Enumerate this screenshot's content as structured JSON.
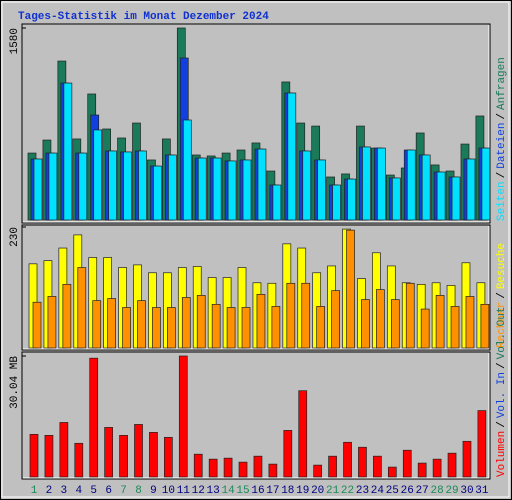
{
  "chart_data": [
    {
      "type": "bar",
      "title": "Tages-Statistik im Monat Dezember 2024",
      "ylim": [
        0,
        1580
      ],
      "yticks": [
        1580
      ],
      "legend_separator": "/",
      "series": [
        {
          "name": "Anfragen",
          "color": "#1a7a5a",
          "values": [
            551,
            658,
            1308,
            667,
            1037,
            749,
            675,
            798,
            494,
            667,
            1580,
            535,
            527,
            551,
            576,
            634,
            403,
            1136,
            798,
            773,
            354,
            379,
            773,
            592,
            370,
            428,
            716,
            453,
            403,
            625,
            856
          ]
        },
        {
          "name": "Dateien",
          "color": "#1040e0",
          "values": [
            502,
            551,
            1127,
            551,
            864,
            568,
            560,
            568,
            444,
            535,
            1333,
            510,
            510,
            486,
            494,
            584,
            288,
            1045,
            568,
            494,
            288,
            337,
            601,
            592,
            346,
            576,
            535,
            395,
            354,
            502,
            592
          ]
        },
        {
          "name": "Seiten",
          "color": "#00e0ff",
          "values": [
            502,
            551,
            1127,
            551,
            741,
            568,
            560,
            568,
            444,
            535,
            823,
            510,
            510,
            486,
            494,
            584,
            288,
            1045,
            568,
            494,
            288,
            337,
            601,
            592,
            346,
            576,
            535,
            395,
            354,
            502,
            592
          ]
        }
      ]
    },
    {
      "type": "bar",
      "ylim": [
        0,
        230
      ],
      "yticks": [
        230
      ],
      "legend_separator": "/",
      "series": [
        {
          "name": "Besuche",
          "color": "#ffff00",
          "values": [
            160,
            166,
            190,
            215,
            172,
            172,
            153,
            158,
            143,
            143,
            153,
            155,
            134,
            134,
            153,
            124,
            123,
            198,
            190,
            143,
            156,
            226,
            132,
            181,
            156,
            124,
            121,
            124,
            119,
            162,
            124
          ]
        },
        {
          "name": "Rechner",
          "color": "#ff9000",
          "values": [
            87,
            98,
            121,
            153,
            90,
            94,
            77,
            90,
            77,
            77,
            96,
            100,
            83,
            77,
            77,
            102,
            79,
            123,
            123,
            79,
            109,
            224,
            92,
            111,
            92,
            123,
            74,
            100,
            79,
            98,
            83
          ]
        }
      ]
    },
    {
      "type": "bar",
      "ylim": [
        0,
        30.04
      ],
      "yticks": [
        {
          "value": 30.04,
          "label": "30.04 MB"
        }
      ],
      "legend_separator": "/",
      "categories": [
        "1",
        "2",
        "3",
        "4",
        "5",
        "6",
        "7",
        "8",
        "9",
        "10",
        "11",
        "12",
        "13",
        "14",
        "15",
        "16",
        "17",
        "18",
        "19",
        "20",
        "21",
        "22",
        "23",
        "24",
        "25",
        "26",
        "27",
        "28",
        "29",
        "30",
        "31"
      ],
      "category_colors": [
        "#1a8a5a",
        "#000080",
        "#000080",
        "#000080",
        "#000080",
        "#000080",
        "#1a8a5a",
        "#1a8a5a",
        "#000080",
        "#000080",
        "#000080",
        "#000080",
        "#000080",
        "#1a8a5a",
        "#1a8a5a",
        "#000080",
        "#000080",
        "#000080",
        "#000080",
        "#000080",
        "#1a8a5a",
        "#1a8a5a",
        "#000080",
        "#000080",
        "#000080",
        "#000080",
        "#000080",
        "#1a8a5a",
        "#1a8a5a",
        "#000080",
        "#000080"
      ],
      "series": [
        {
          "name": "Volumen",
          "color": "#ff0000",
          "values": [
            10.59,
            10.34,
            13.54,
            8.37,
            29.5,
            12.31,
            10.34,
            13.05,
            11.08,
            9.85,
            30.04,
            5.66,
            4.43,
            4.68,
            3.69,
            5.17,
            3.2,
            11.57,
            21.42,
            2.95,
            5.17,
            8.62,
            7.39,
            5.17,
            2.46,
            6.65,
            3.45,
            4.43,
            5.91,
            8.86,
            16.49
          ]
        },
        {
          "name": "Vol. In",
          "color": "#1040e0"
        },
        {
          "name": "Vol. Out",
          "color": "#1a7a5a"
        }
      ]
    }
  ]
}
